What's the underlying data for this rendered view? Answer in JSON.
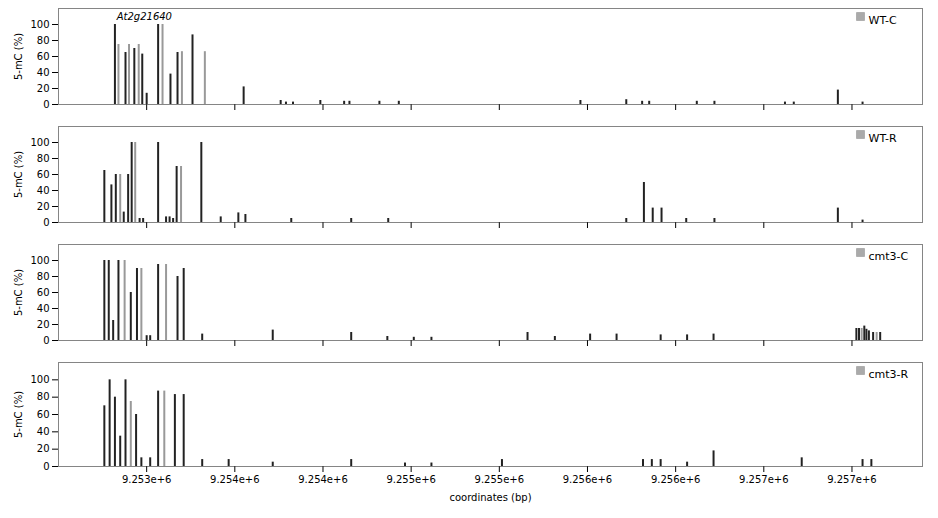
{
  "chart_data": [
    {
      "type": "bar",
      "series": [
        {
          "name": "WT-C",
          "color": "#aaaaaa",
          "x": [
            9252820,
            9252840,
            9252880,
            9252900,
            9252930,
            9252955,
            9252975,
            9253000,
            9253065,
            9253090,
            9253135,
            9253175,
            9253200,
            9253260,
            9253330,
            9253550,
            9253760,
            9253790,
            9253830,
            9253985,
            9254120,
            9254150,
            9254320,
            9254430,
            9255460,
            9255720,
            9255810,
            9255850,
            9256120,
            9256220,
            9256620,
            9256670,
            9256920,
            9257060
          ],
          "values": [
            100,
            75,
            65,
            75,
            70,
            75,
            63,
            14,
            100,
            100,
            38,
            65,
            66,
            87,
            66,
            22,
            5,
            3,
            3,
            5,
            4,
            4,
            4,
            4,
            5,
            6,
            4,
            4,
            4,
            4,
            3,
            3,
            18,
            3
          ],
          "colors": [
            "#222222",
            "#999999",
            "#222222",
            "#999999",
            "#222222",
            "#999999",
            "#222222",
            "#222222",
            "#222222",
            "#999999",
            "#222222",
            "#222222",
            "#999999",
            "#222222",
            "#999999",
            "#222222",
            "#222222",
            "#222222",
            "#222222",
            "#222222",
            "#222222",
            "#222222",
            "#222222",
            "#222222",
            "#222222",
            "#222222",
            "#222222",
            "#222222",
            "#222222",
            "#222222",
            "#222222",
            "#222222",
            "#222222",
            "#222222"
          ]
        }
      ],
      "legend": "upper right",
      "xlim": [
        9252500,
        9257400
      ],
      "ylim": [
        0,
        120
      ],
      "xticks": [
        9253000,
        9253500,
        9254000,
        9254500,
        9255000,
        9255500,
        9256000,
        9256500,
        9257000
      ],
      "yticks": [
        0,
        20,
        40,
        60,
        80,
        100
      ],
      "ylabel": "5-mC (%)",
      "tick_labels": "y",
      "annotations": [
        {
          "text": "At2g21640",
          "x": 9252830,
          "y": 106
        }
      ]
    },
    {
      "type": "bar",
      "series": [
        {
          "name": "WT-R",
          "color": "#aaaaaa",
          "x": [
            9252760,
            9252800,
            9252825,
            9252850,
            9252870,
            9252895,
            9252915,
            9252935,
            9252960,
            9252980,
            9253065,
            9253110,
            9253130,
            9253150,
            9253170,
            9253195,
            9253310,
            9253420,
            9253520,
            9253560,
            9253820,
            9254160,
            9254370,
            9255720,
            9255820,
            9255870,
            9255920,
            9256060,
            9256220,
            9256920,
            9257060
          ],
          "values": [
            65,
            47,
            60,
            60,
            13,
            60,
            100,
            100,
            5,
            5,
            100,
            7,
            7,
            5,
            70,
            70,
            100,
            7,
            12,
            10,
            5,
            5,
            5,
            5,
            50,
            18,
            18,
            5,
            5,
            18,
            3
          ],
          "colors": [
            "#222222",
            "#222222",
            "#222222",
            "#999999",
            "#222222",
            "#222222",
            "#222222",
            "#999999",
            "#222222",
            "#222222",
            "#222222",
            "#222222",
            "#222222",
            "#222222",
            "#222222",
            "#999999",
            "#222222",
            "#222222",
            "#222222",
            "#222222",
            "#222222",
            "#222222",
            "#222222",
            "#222222",
            "#222222",
            "#222222",
            "#222222",
            "#222222",
            "#222222",
            "#222222",
            "#222222"
          ]
        }
      ],
      "legend": "upper right",
      "xlim": [
        9252500,
        9257400
      ],
      "ylim": [
        0,
        120
      ],
      "xticks": [
        9253000,
        9253500,
        9254000,
        9254500,
        9255000,
        9255500,
        9256000,
        9256500,
        9257000
      ],
      "yticks": [
        0,
        20,
        40,
        60,
        80,
        100
      ],
      "ylabel": "5-mC (%)",
      "tick_labels": "y"
    },
    {
      "type": "bar",
      "series": [
        {
          "name": "cmt3-C",
          "color": "#aaaaaa",
          "x": [
            9252760,
            9252785,
            9252810,
            9252840,
            9252875,
            9252910,
            9252945,
            9252970,
            9253000,
            9253020,
            9253065,
            9253110,
            9253175,
            9253210,
            9253315,
            9253715,
            9254160,
            9254365,
            9254515,
            9254615,
            9255160,
            9255315,
            9255515,
            9255665,
            9255915,
            9256065,
            9256215,
            9257025,
            9257040,
            9257055,
            9257070,
            9257082,
            9257096,
            9257120,
            9257140,
            9257160
          ],
          "values": [
            100,
            100,
            25,
            100,
            100,
            60,
            90,
            90,
            6,
            6,
            95,
            95,
            80,
            90,
            8,
            13,
            10,
            5,
            4,
            4,
            10,
            5,
            8,
            8,
            7,
            7,
            8,
            15,
            15,
            15,
            18,
            14,
            12,
            10,
            10,
            10
          ],
          "colors": [
            "#222222",
            "#222222",
            "#222222",
            "#222222",
            "#999999",
            "#222222",
            "#222222",
            "#999999",
            "#222222",
            "#222222",
            "#222222",
            "#999999",
            "#222222",
            "#222222",
            "#222222",
            "#222222",
            "#222222",
            "#222222",
            "#222222",
            "#222222",
            "#222222",
            "#222222",
            "#222222",
            "#222222",
            "#222222",
            "#222222",
            "#222222",
            "#222222",
            "#222222",
            "#999999",
            "#222222",
            "#222222",
            "#222222",
            "#222222",
            "#999999",
            "#222222"
          ]
        }
      ],
      "legend": "upper right",
      "xlim": [
        9252500,
        9257400
      ],
      "ylim": [
        0,
        120
      ],
      "xticks": [
        9253000,
        9253500,
        9254000,
        9254500,
        9255000,
        9255500,
        9256000,
        9256500,
        9257000
      ],
      "yticks": [
        0,
        20,
        40,
        60,
        80,
        100
      ],
      "ylabel": "5-mC (%)",
      "tick_labels": "y"
    },
    {
      "type": "bar",
      "series": [
        {
          "name": "cmt3-R",
          "color": "#aaaaaa",
          "x": [
            9252760,
            9252790,
            9252820,
            9252850,
            9252880,
            9252910,
            9252940,
            9252970,
            9253020,
            9253065,
            9253100,
            9253160,
            9253210,
            9253315,
            9253465,
            9253715,
            9254160,
            9254465,
            9254615,
            9255015,
            9255815,
            9255865,
            9255915,
            9256065,
            9256215,
            9256715,
            9257060,
            9257110
          ],
          "values": [
            70,
            100,
            80,
            35,
            100,
            75,
            60,
            10,
            10,
            87,
            87,
            83,
            83,
            8,
            8,
            5,
            8,
            4,
            4,
            8,
            8,
            8,
            8,
            5,
            18,
            10,
            8,
            8
          ],
          "colors": [
            "#222222",
            "#222222",
            "#222222",
            "#222222",
            "#222222",
            "#999999",
            "#222222",
            "#222222",
            "#222222",
            "#222222",
            "#999999",
            "#222222",
            "#222222",
            "#222222",
            "#222222",
            "#222222",
            "#222222",
            "#222222",
            "#222222",
            "#222222",
            "#222222",
            "#222222",
            "#222222",
            "#222222",
            "#222222",
            "#222222",
            "#222222",
            "#222222"
          ]
        }
      ],
      "legend": "upper right",
      "xlim": [
        9252500,
        9257400
      ],
      "ylim": [
        0,
        120
      ],
      "xticks": [
        {
          "value": 9253000,
          "label": "9.253e+6"
        },
        {
          "value": 9253500,
          "label": "9.254e+6"
        },
        {
          "value": 9254000,
          "label": "9.254e+6"
        },
        {
          "value": 9254500,
          "label": "9.255e+6"
        },
        {
          "value": 9255000,
          "label": "9.255e+6"
        },
        {
          "value": 9255500,
          "label": "9.256e+6"
        },
        {
          "value": 9256000,
          "label": "9.256e+6"
        },
        {
          "value": 9256500,
          "label": "9.257e+6"
        },
        {
          "value": 9257000,
          "label": "9.257e+6"
        }
      ],
      "yticks": [
        0,
        20,
        40,
        60,
        80,
        100
      ],
      "ylabel": "5-mC (%)",
      "xlabel": "coordinates (bp)"
    }
  ]
}
